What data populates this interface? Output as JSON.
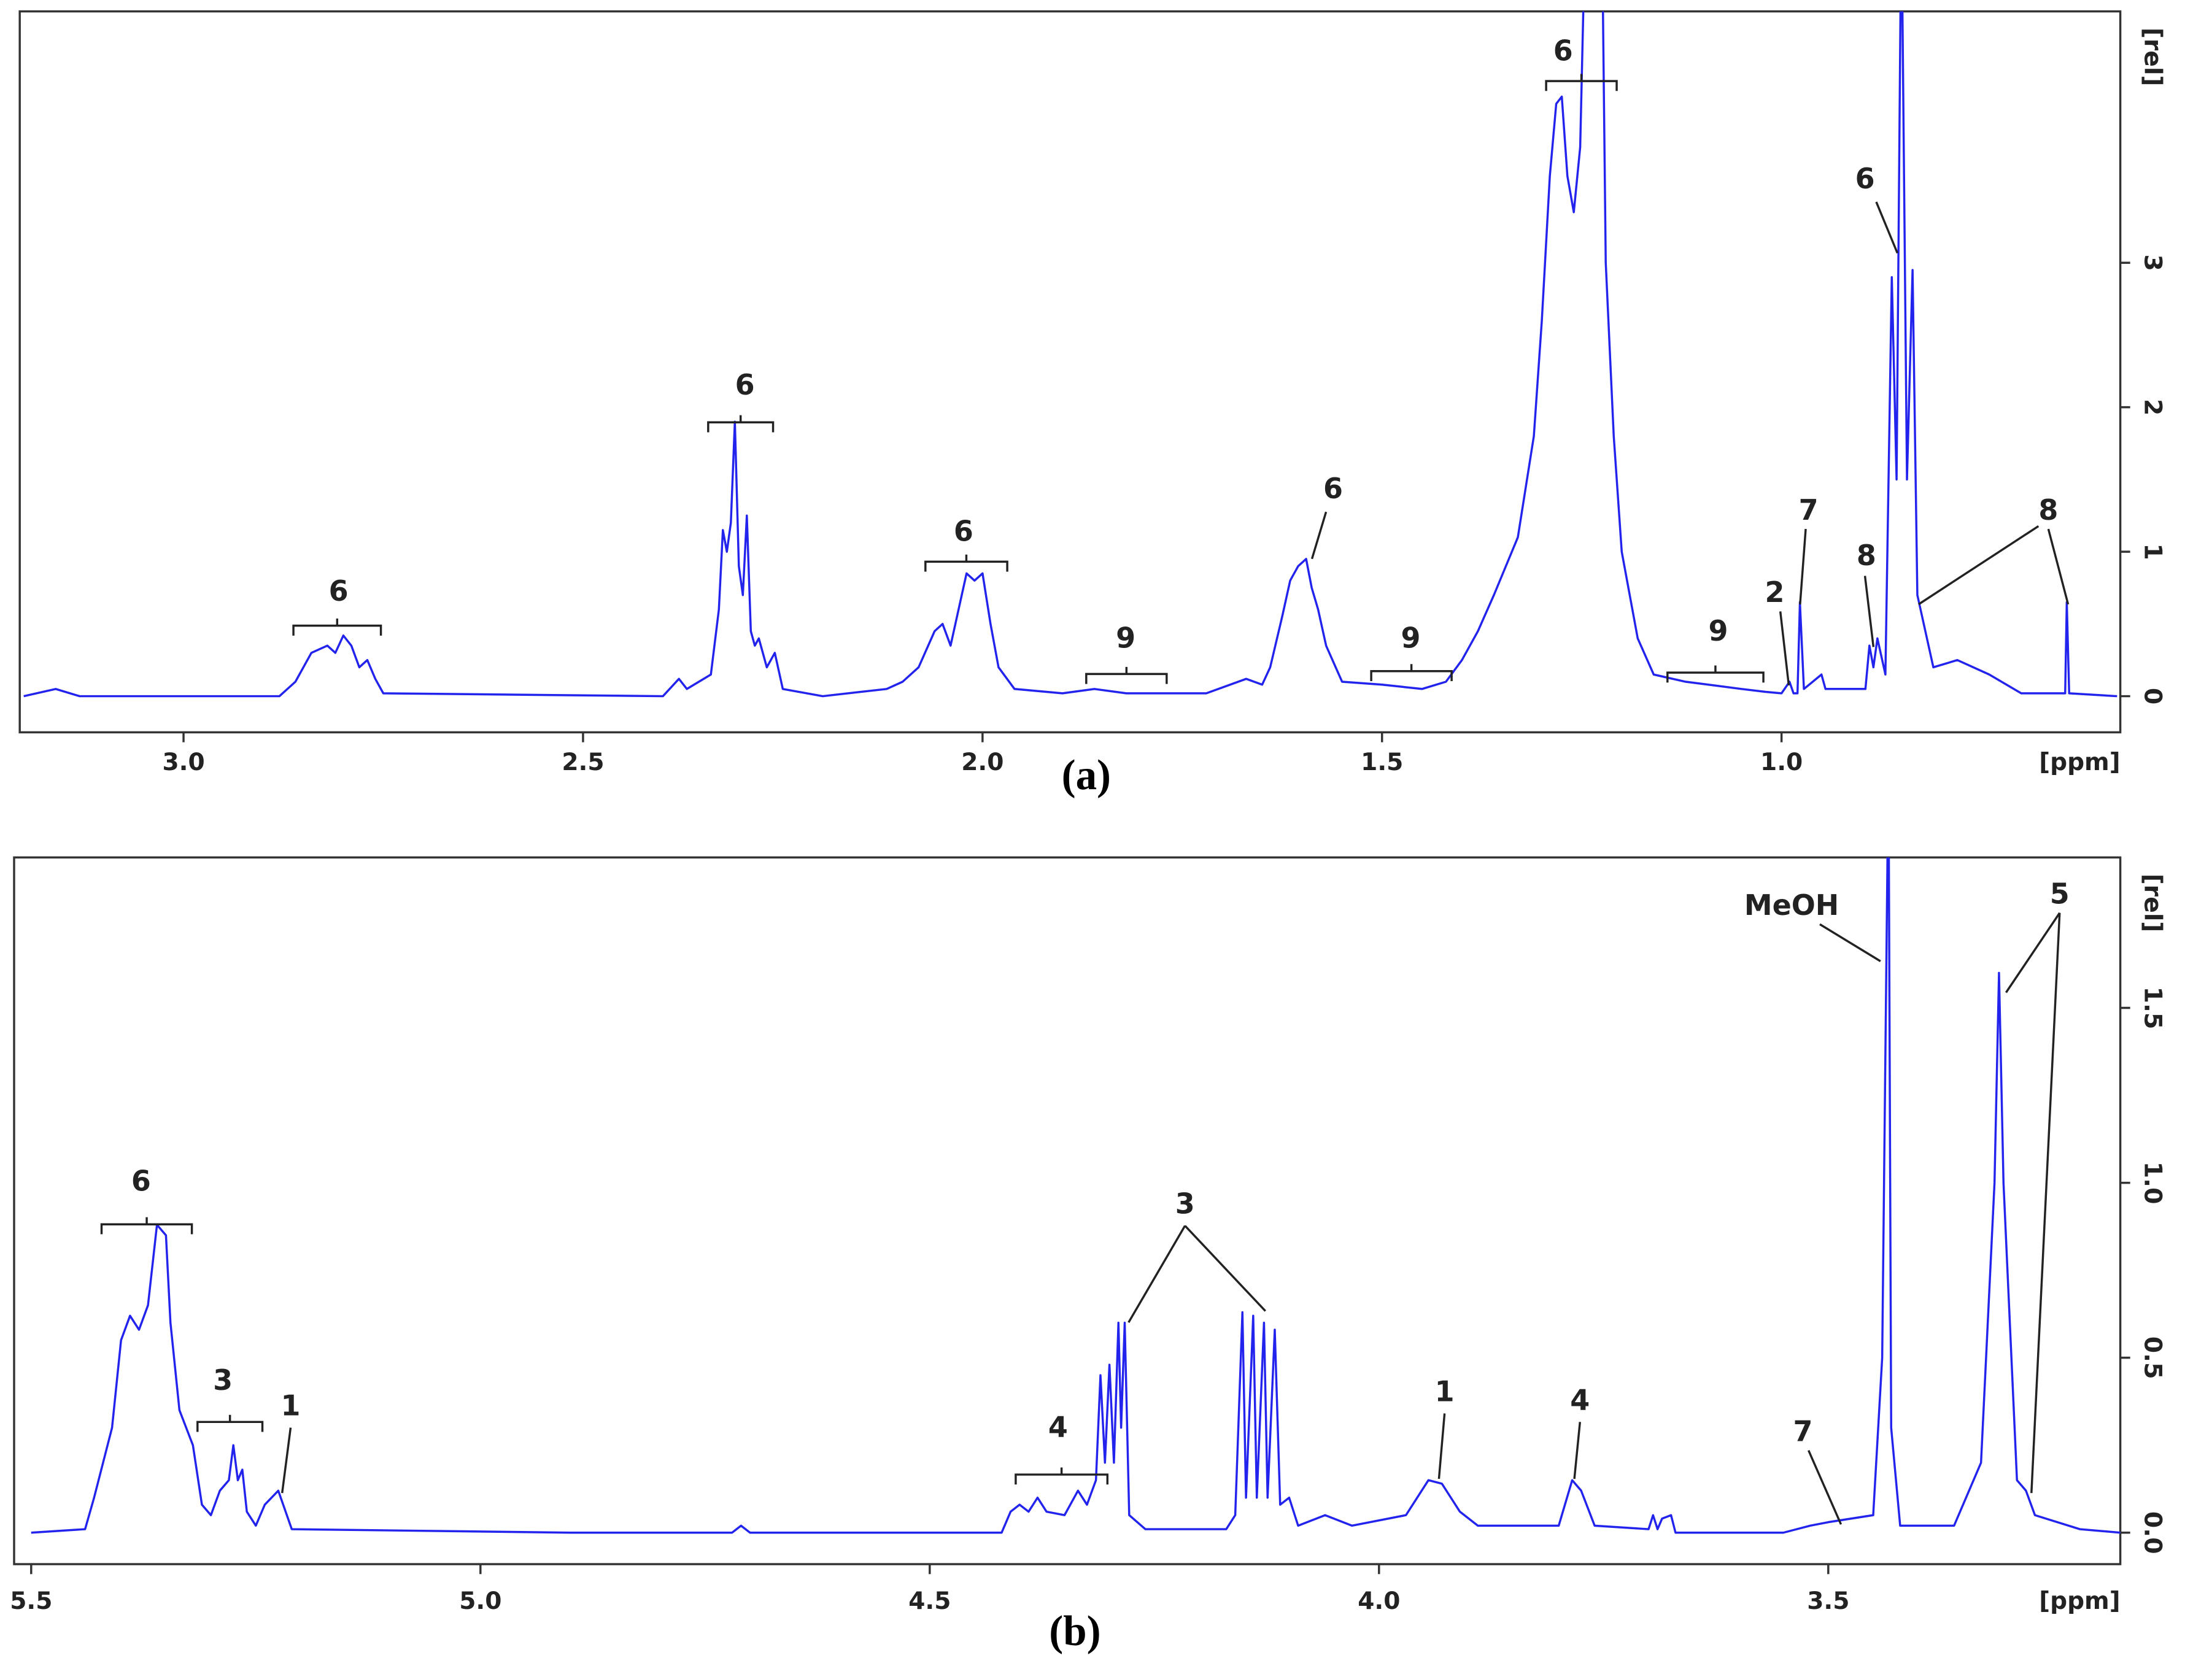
{
  "chart_data": [
    {
      "type": "line",
      "panel_label": "(a)",
      "xlabel": "[ppm]",
      "ylabel": "[rel]",
      "color": "#2323ee",
      "xlim": [
        3.205,
        0.576
      ],
      "ylim": [
        -0.25,
        4.74
      ],
      "xticks": [
        {
          "value": 3,
          "label": "3.0"
        },
        {
          "value": 2.5,
          "label": "2.5"
        },
        {
          "value": 2,
          "label": "2.0"
        },
        {
          "value": 1.5,
          "label": "1.5"
        },
        {
          "value": 1,
          "label": "1.0"
        }
      ],
      "yticks": [
        0,
        1,
        2,
        3
      ],
      "annotations": [
        "6",
        "6",
        "6",
        "9",
        "6",
        "9",
        "6",
        "9",
        "2",
        "7",
        "6",
        "8",
        "8"
      ],
      "x": [
        3.2,
        3.16,
        3.13,
        2.88,
        2.86,
        2.84,
        2.82,
        2.81,
        2.8,
        2.79,
        2.78,
        2.77,
        2.76,
        2.75,
        2.4,
        2.38,
        2.37,
        2.34,
        2.33,
        2.325,
        2.32,
        2.315,
        2.31,
        2.305,
        2.3,
        2.295,
        2.29,
        2.285,
        2.28,
        2.27,
        2.26,
        2.25,
        2.2,
        2.12,
        2.1,
        2.08,
        2.06,
        2.05,
        2.04,
        2.03,
        2.02,
        2.01,
        2.0,
        1.99,
        1.98,
        1.96,
        1.9,
        1.86,
        1.82,
        1.72,
        1.67,
        1.65,
        1.64,
        1.625,
        1.615,
        1.605,
        1.595,
        1.588,
        1.58,
        1.57,
        1.55,
        1.5,
        1.45,
        1.42,
        1.4,
        1.38,
        1.36,
        1.33,
        1.31,
        1.3,
        1.29,
        1.282,
        1.275,
        1.268,
        1.26,
        1.252,
        1.245,
        1.225,
        1.22,
        1.21,
        1.2,
        1.18,
        1.16,
        1.12,
        1.05,
        1.02,
        1.0,
        0.99,
        0.985,
        0.98,
        0.977,
        0.972,
        0.95,
        0.945,
        0.895,
        0.89,
        0.885,
        0.88,
        0.87,
        0.862,
        0.856,
        0.85,
        0.843,
        0.836,
        0.83,
        0.826,
        0.81,
        0.78,
        0.74,
        0.7,
        0.645,
        0.643,
        0.64,
        0.58
      ],
      "values": [
        0,
        0.05,
        0,
        0,
        0.1,
        0.3,
        0.35,
        0.3,
        0.42,
        0.35,
        0.2,
        0.25,
        0.12,
        0.02,
        0,
        0.12,
        0.05,
        0.15,
        0.6,
        1.15,
        1.0,
        1.2,
        1.9,
        0.9,
        0.7,
        1.25,
        0.45,
        0.35,
        0.4,
        0.2,
        0.3,
        0.05,
        0,
        0.05,
        0.1,
        0.2,
        0.45,
        0.5,
        0.35,
        0.6,
        0.85,
        0.8,
        0.85,
        0.5,
        0.2,
        0.05,
        0.02,
        0.05,
        0.02,
        0.02,
        0.12,
        0.08,
        0.2,
        0.55,
        0.8,
        0.9,
        0.95,
        0.75,
        0.6,
        0.35,
        0.1,
        0.08,
        0.05,
        0.1,
        0.25,
        0.45,
        0.7,
        1.1,
        1.8,
        2.6,
        3.6,
        4.1,
        4.15,
        3.6,
        3.35,
        3.8,
        5.5,
        5.5,
        3.0,
        1.8,
        1.0,
        0.4,
        0.15,
        0.1,
        0.05,
        0.03,
        0.02,
        0.1,
        0.02,
        0.02,
        0.65,
        0.05,
        0.15,
        0.05,
        0.05,
        0.35,
        0.2,
        0.4,
        0.15,
        2.9,
        1.5,
        5.5,
        1.5,
        2.95,
        0.7,
        0.6,
        0.2,
        0.25,
        0.15,
        0.02,
        0.02,
        0.65,
        0.02,
        0
      ]
    },
    {
      "type": "line",
      "panel_label": "(b)",
      "xlabel": "[ppm]",
      "ylabel": "[rel]",
      "color": "#2323ee",
      "xlim": [
        5.519,
        3.175
      ],
      "ylim": [
        -0.09,
        1.93
      ],
      "xticks": [
        {
          "value": 5.5,
          "label": "5.5"
        },
        {
          "value": 5,
          "label": "5.0"
        },
        {
          "value": 4.5,
          "label": "4.5"
        },
        {
          "value": 4,
          "label": "4.0"
        },
        {
          "value": 3.5,
          "label": "3.5"
        }
      ],
      "yticks": [
        {
          "value": 0,
          "label": "0.0"
        },
        0.5,
        {
          "value": 1,
          "label": "1.0"
        },
        1.5
      ],
      "annotations": [
        "6",
        "3",
        "1",
        "4",
        "3",
        "1",
        "4",
        "7",
        "MeOH",
        "5"
      ],
      "x": [
        5.5,
        5.44,
        5.43,
        5.41,
        5.4,
        5.39,
        5.38,
        5.37,
        5.36,
        5.35,
        5.345,
        5.335,
        5.32,
        5.31,
        5.3,
        5.29,
        5.28,
        5.275,
        5.27,
        5.265,
        5.26,
        5.25,
        5.24,
        5.225,
        5.21,
        4.9,
        4.72,
        4.71,
        4.7,
        4.42,
        4.41,
        4.4,
        4.39,
        4.38,
        4.37,
        4.35,
        4.335,
        4.325,
        4.315,
        4.31,
        4.305,
        4.3,
        4.295,
        4.29,
        4.287,
        4.283,
        4.278,
        4.26,
        4.17,
        4.16,
        4.152,
        4.148,
        4.14,
        4.136,
        4.128,
        4.124,
        4.116,
        4.11,
        4.1,
        4.09,
        4.06,
        4.03,
        3.97,
        3.945,
        3.93,
        3.91,
        3.89,
        3.8,
        3.785,
        3.775,
        3.76,
        3.7,
        3.695,
        3.69,
        3.685,
        3.675,
        3.67,
        3.55,
        3.52,
        3.5,
        3.45,
        3.44,
        3.433,
        3.43,
        3.42,
        3.36,
        3.33,
        3.315,
        3.31,
        3.305,
        3.29,
        3.28,
        3.27,
        3.22,
        3.175
      ],
      "values": [
        0,
        0.01,
        0.1,
        0.3,
        0.55,
        0.62,
        0.58,
        0.65,
        0.88,
        0.85,
        0.6,
        0.35,
        0.25,
        0.08,
        0.05,
        0.12,
        0.15,
        0.25,
        0.15,
        0.18,
        0.06,
        0.02,
        0.08,
        0.12,
        0.01,
        0,
        0,
        0.02,
        0,
        0,
        0.06,
        0.08,
        0.06,
        0.1,
        0.06,
        0.05,
        0.12,
        0.08,
        0.15,
        0.45,
        0.2,
        0.48,
        0.2,
        0.6,
        0.3,
        0.6,
        0.05,
        0.01,
        0.01,
        0.05,
        0.63,
        0.1,
        0.62,
        0.1,
        0.6,
        0.1,
        0.58,
        0.08,
        0.1,
        0.02,
        0.05,
        0.02,
        0.05,
        0.15,
        0.14,
        0.06,
        0.02,
        0.02,
        0.15,
        0.12,
        0.02,
        0.01,
        0.05,
        0.01,
        0.04,
        0.05,
        0,
        0,
        0.02,
        0.03,
        0.05,
        0.5,
        2.2,
        0.3,
        0.02,
        0.02,
        0.2,
        1.0,
        1.6,
        1.0,
        0.15,
        0.12,
        0.05,
        0.01,
        0
      ]
    }
  ]
}
